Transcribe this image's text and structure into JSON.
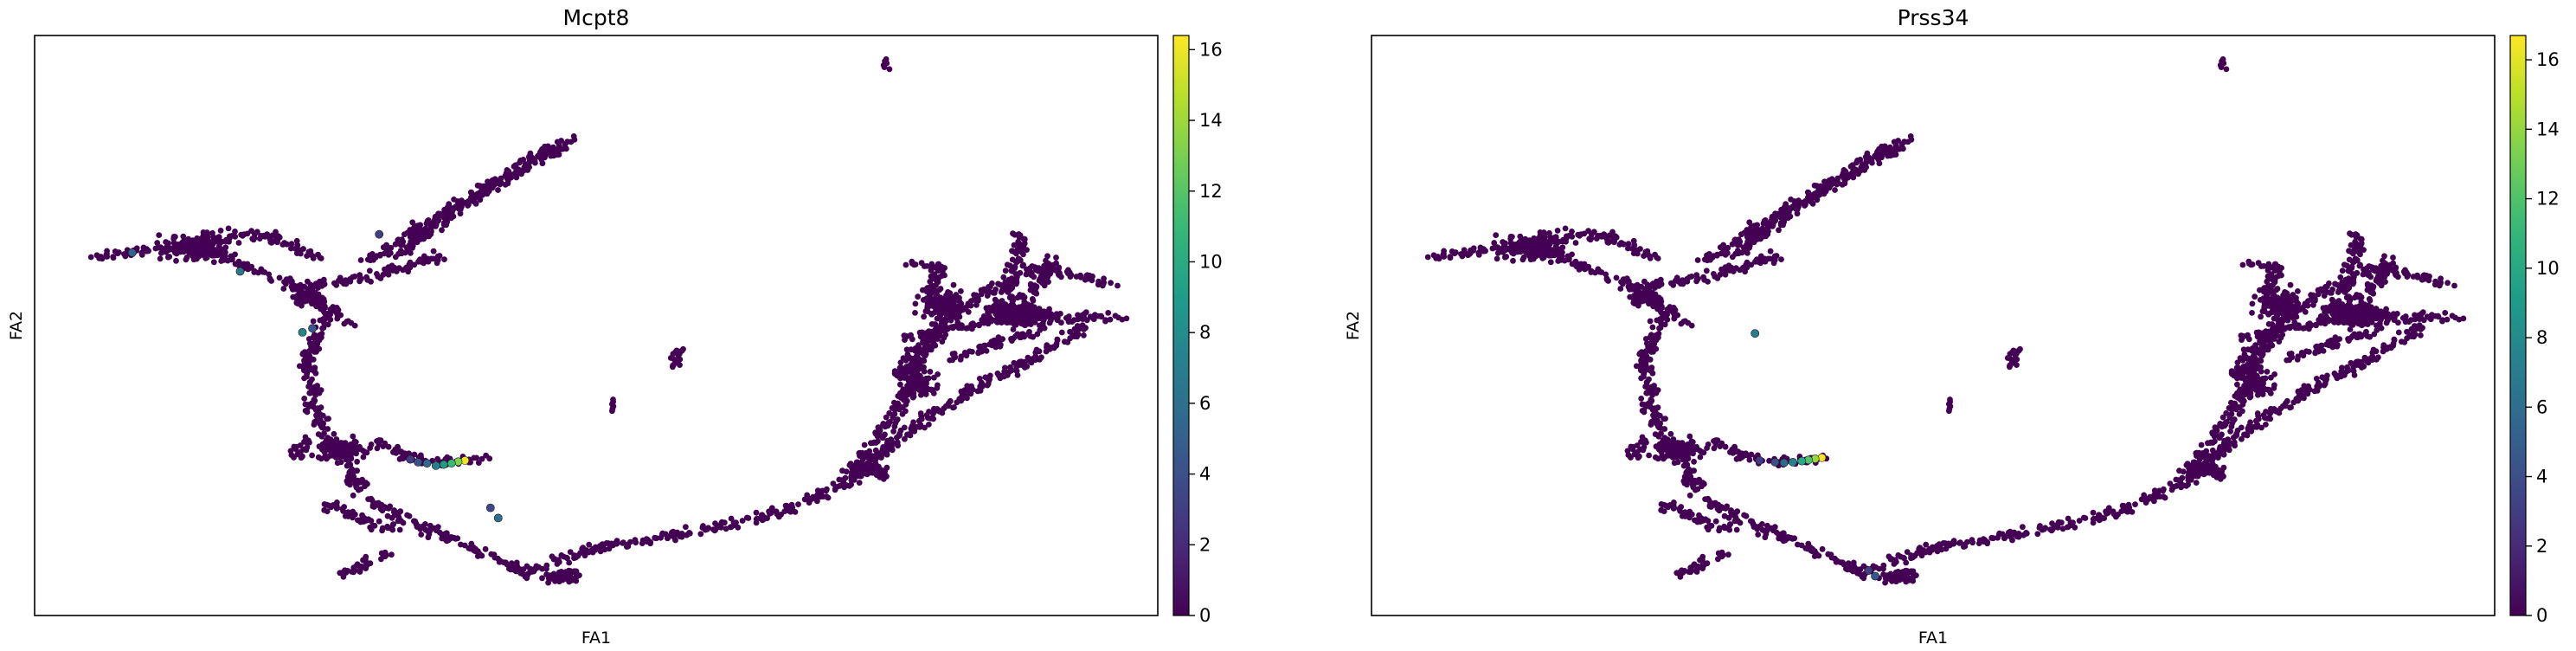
{
  "chart_data": [
    {
      "type": "scatter",
      "title": "Mcpt8",
      "xlabel": "FA1",
      "ylabel": "FA2",
      "grid": false,
      "legend": "none",
      "colormap": "viridis",
      "colorbar": {
        "min": 0,
        "max": 16.4,
        "ticks": [
          0,
          2,
          4,
          6,
          8,
          10,
          12,
          14,
          16
        ]
      },
      "embedding_range": {
        "x": [
          0,
          100
        ],
        "y": [
          0,
          100
        ]
      },
      "highlights": [
        {
          "x": 38.2,
          "y": 26.3,
          "value": 16.0
        },
        {
          "x": 37.6,
          "y": 26.1,
          "value": 13.2
        },
        {
          "x": 37.0,
          "y": 25.8,
          "value": 11.0
        },
        {
          "x": 36.3,
          "y": 25.6,
          "value": 9.0
        },
        {
          "x": 35.6,
          "y": 25.4,
          "value": 7.0
        },
        {
          "x": 34.8,
          "y": 25.8,
          "value": 5.5
        },
        {
          "x": 34.0,
          "y": 26.0,
          "value": 4.0
        },
        {
          "x": 33.3,
          "y": 26.5,
          "value": 3.0
        },
        {
          "x": 8.3,
          "y": 62.8,
          "value": 5.0
        },
        {
          "x": 18.0,
          "y": 59.5,
          "value": 6.5
        },
        {
          "x": 23.6,
          "y": 48.8,
          "value": 7.5
        },
        {
          "x": 24.5,
          "y": 49.5,
          "value": 4.5
        },
        {
          "x": 41.2,
          "y": 16.2,
          "value": 6.0
        },
        {
          "x": 40.5,
          "y": 18.0,
          "value": 3.5
        },
        {
          "x": 30.5,
          "y": 66.0,
          "value": 3.0
        }
      ]
    },
    {
      "type": "scatter",
      "title": "Prss34",
      "xlabel": "FA1",
      "ylabel": "FA2",
      "grid": false,
      "legend": "none",
      "colormap": "viridis",
      "colorbar": {
        "min": 0,
        "max": 16.7,
        "ticks": [
          0,
          2,
          4,
          6,
          8,
          10,
          12,
          14,
          16
        ]
      },
      "embedding_range": {
        "x": [
          0,
          100
        ],
        "y": [
          0,
          100
        ]
      },
      "highlights": [
        {
          "x": 40.0,
          "y": 26.8,
          "value": 16.5
        },
        {
          "x": 39.4,
          "y": 26.6,
          "value": 14.0
        },
        {
          "x": 38.8,
          "y": 26.4,
          "value": 12.0
        },
        {
          "x": 38.2,
          "y": 26.2,
          "value": 10.0
        },
        {
          "x": 37.4,
          "y": 26.0,
          "value": 7.5
        },
        {
          "x": 36.6,
          "y": 25.9,
          "value": 5.5
        },
        {
          "x": 35.8,
          "y": 26.0,
          "value": 4.0
        },
        {
          "x": 34.4,
          "y": 26.3,
          "value": 3.0
        },
        {
          "x": 34.0,
          "y": 48.6,
          "value": 7.0
        },
        {
          "x": 44.8,
          "y": 6.0,
          "value": 4.5
        },
        {
          "x": 44.2,
          "y": 7.0,
          "value": 3.0
        }
      ]
    }
  ]
}
